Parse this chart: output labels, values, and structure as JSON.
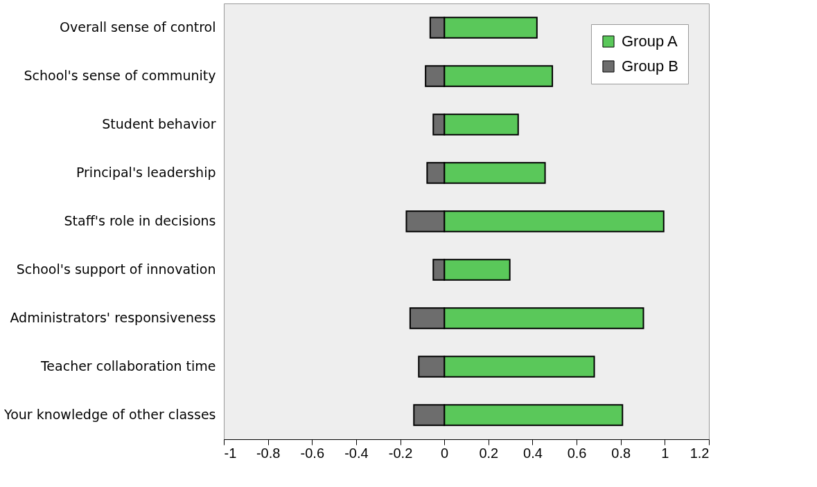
{
  "chart_data": {
    "type": "bar",
    "orientation": "horizontal",
    "stacked": true,
    "categories": [
      "Overall sense of control",
      "School's sense of community",
      "Student behavior",
      "Principal's leadership",
      "Staff's role in decisions",
      "School's support of innovation",
      "Administrators' responsiveness",
      "Teacher collaboration time",
      "Your knowledge of other classes"
    ],
    "series": [
      {
        "name": "Group A",
        "color": "#5ac85a",
        "values": [
          0.42,
          0.49,
          0.335,
          0.457,
          0.995,
          0.297,
          0.903,
          0.68,
          0.808
        ]
      },
      {
        "name": "Group B",
        "color": "#6d6d6d",
        "values": [
          -0.064,
          -0.085,
          -0.05,
          -0.078,
          -0.172,
          -0.05,
          -0.155,
          -0.116,
          -0.138
        ]
      }
    ],
    "xlim": [
      -1,
      1.2
    ],
    "xticks": [
      -1,
      -0.8,
      -0.6,
      -0.4,
      -0.2,
      0,
      0.2,
      0.4,
      0.6,
      0.8,
      1,
      1.2
    ],
    "grid": false,
    "legend": "top right"
  }
}
